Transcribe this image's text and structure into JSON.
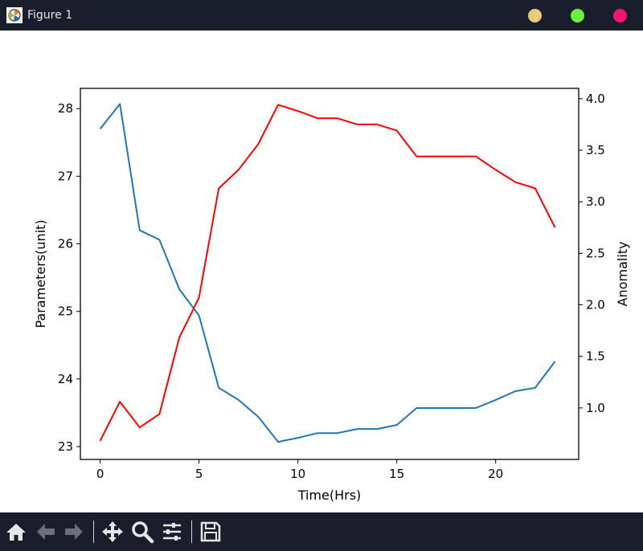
{
  "window": {
    "title": "Figure 1",
    "app_icon": "matplotlib-icon",
    "buttons": [
      {
        "name": "minimize",
        "color": "#e8cc7a"
      },
      {
        "name": "maximize",
        "color": "#6cf03c"
      },
      {
        "name": "close",
        "color": "#f0156e"
      }
    ]
  },
  "toolbar": {
    "tools": [
      "home-icon",
      "back-icon",
      "forward-icon",
      "pan-icon",
      "zoom-icon",
      "configure-subplots-icon",
      "save-icon"
    ]
  },
  "chart_data": {
    "type": "line",
    "xlabel": "Time(Hrs)",
    "ylabel": "Parameters(unit)",
    "ylabel_right": "Anomality",
    "xlim": [
      -1,
      24.2
    ],
    "ylim": [
      22.81,
      28.3
    ],
    "ylim_right": [
      0.5,
      4.1
    ],
    "xticks": [
      0,
      5,
      10,
      15,
      20
    ],
    "yticks": [
      23,
      24,
      25,
      26,
      27,
      28
    ],
    "yticks_right": [
      1.0,
      1.5,
      2.0,
      2.5,
      3.0,
      3.5,
      4.0
    ],
    "x": [
      0,
      1,
      2,
      3,
      4,
      5,
      6,
      7,
      8,
      9,
      10,
      11,
      12,
      13,
      14,
      15,
      16,
      17,
      18,
      19,
      20,
      21,
      22,
      23
    ],
    "series": [
      {
        "axis": "left",
        "color": "#1f77b4",
        "values": [
          27.7,
          28.07,
          26.2,
          26.06,
          25.33,
          24.94,
          23.87,
          23.69,
          23.44,
          23.07,
          23.13,
          23.2,
          23.2,
          23.26,
          23.26,
          23.32,
          23.57,
          23.57,
          23.57,
          23.57,
          23.69,
          23.82,
          23.87,
          24.26
        ]
      },
      {
        "axis": "right",
        "color": "#ff0000",
        "values": [
          0.68,
          1.06,
          0.81,
          0.94,
          1.68,
          2.07,
          3.13,
          3.31,
          3.56,
          3.94,
          3.88,
          3.81,
          3.81,
          3.75,
          3.75,
          3.69,
          3.44,
          3.44,
          3.44,
          3.44,
          3.31,
          3.19,
          3.13,
          2.75
        ]
      }
    ]
  }
}
